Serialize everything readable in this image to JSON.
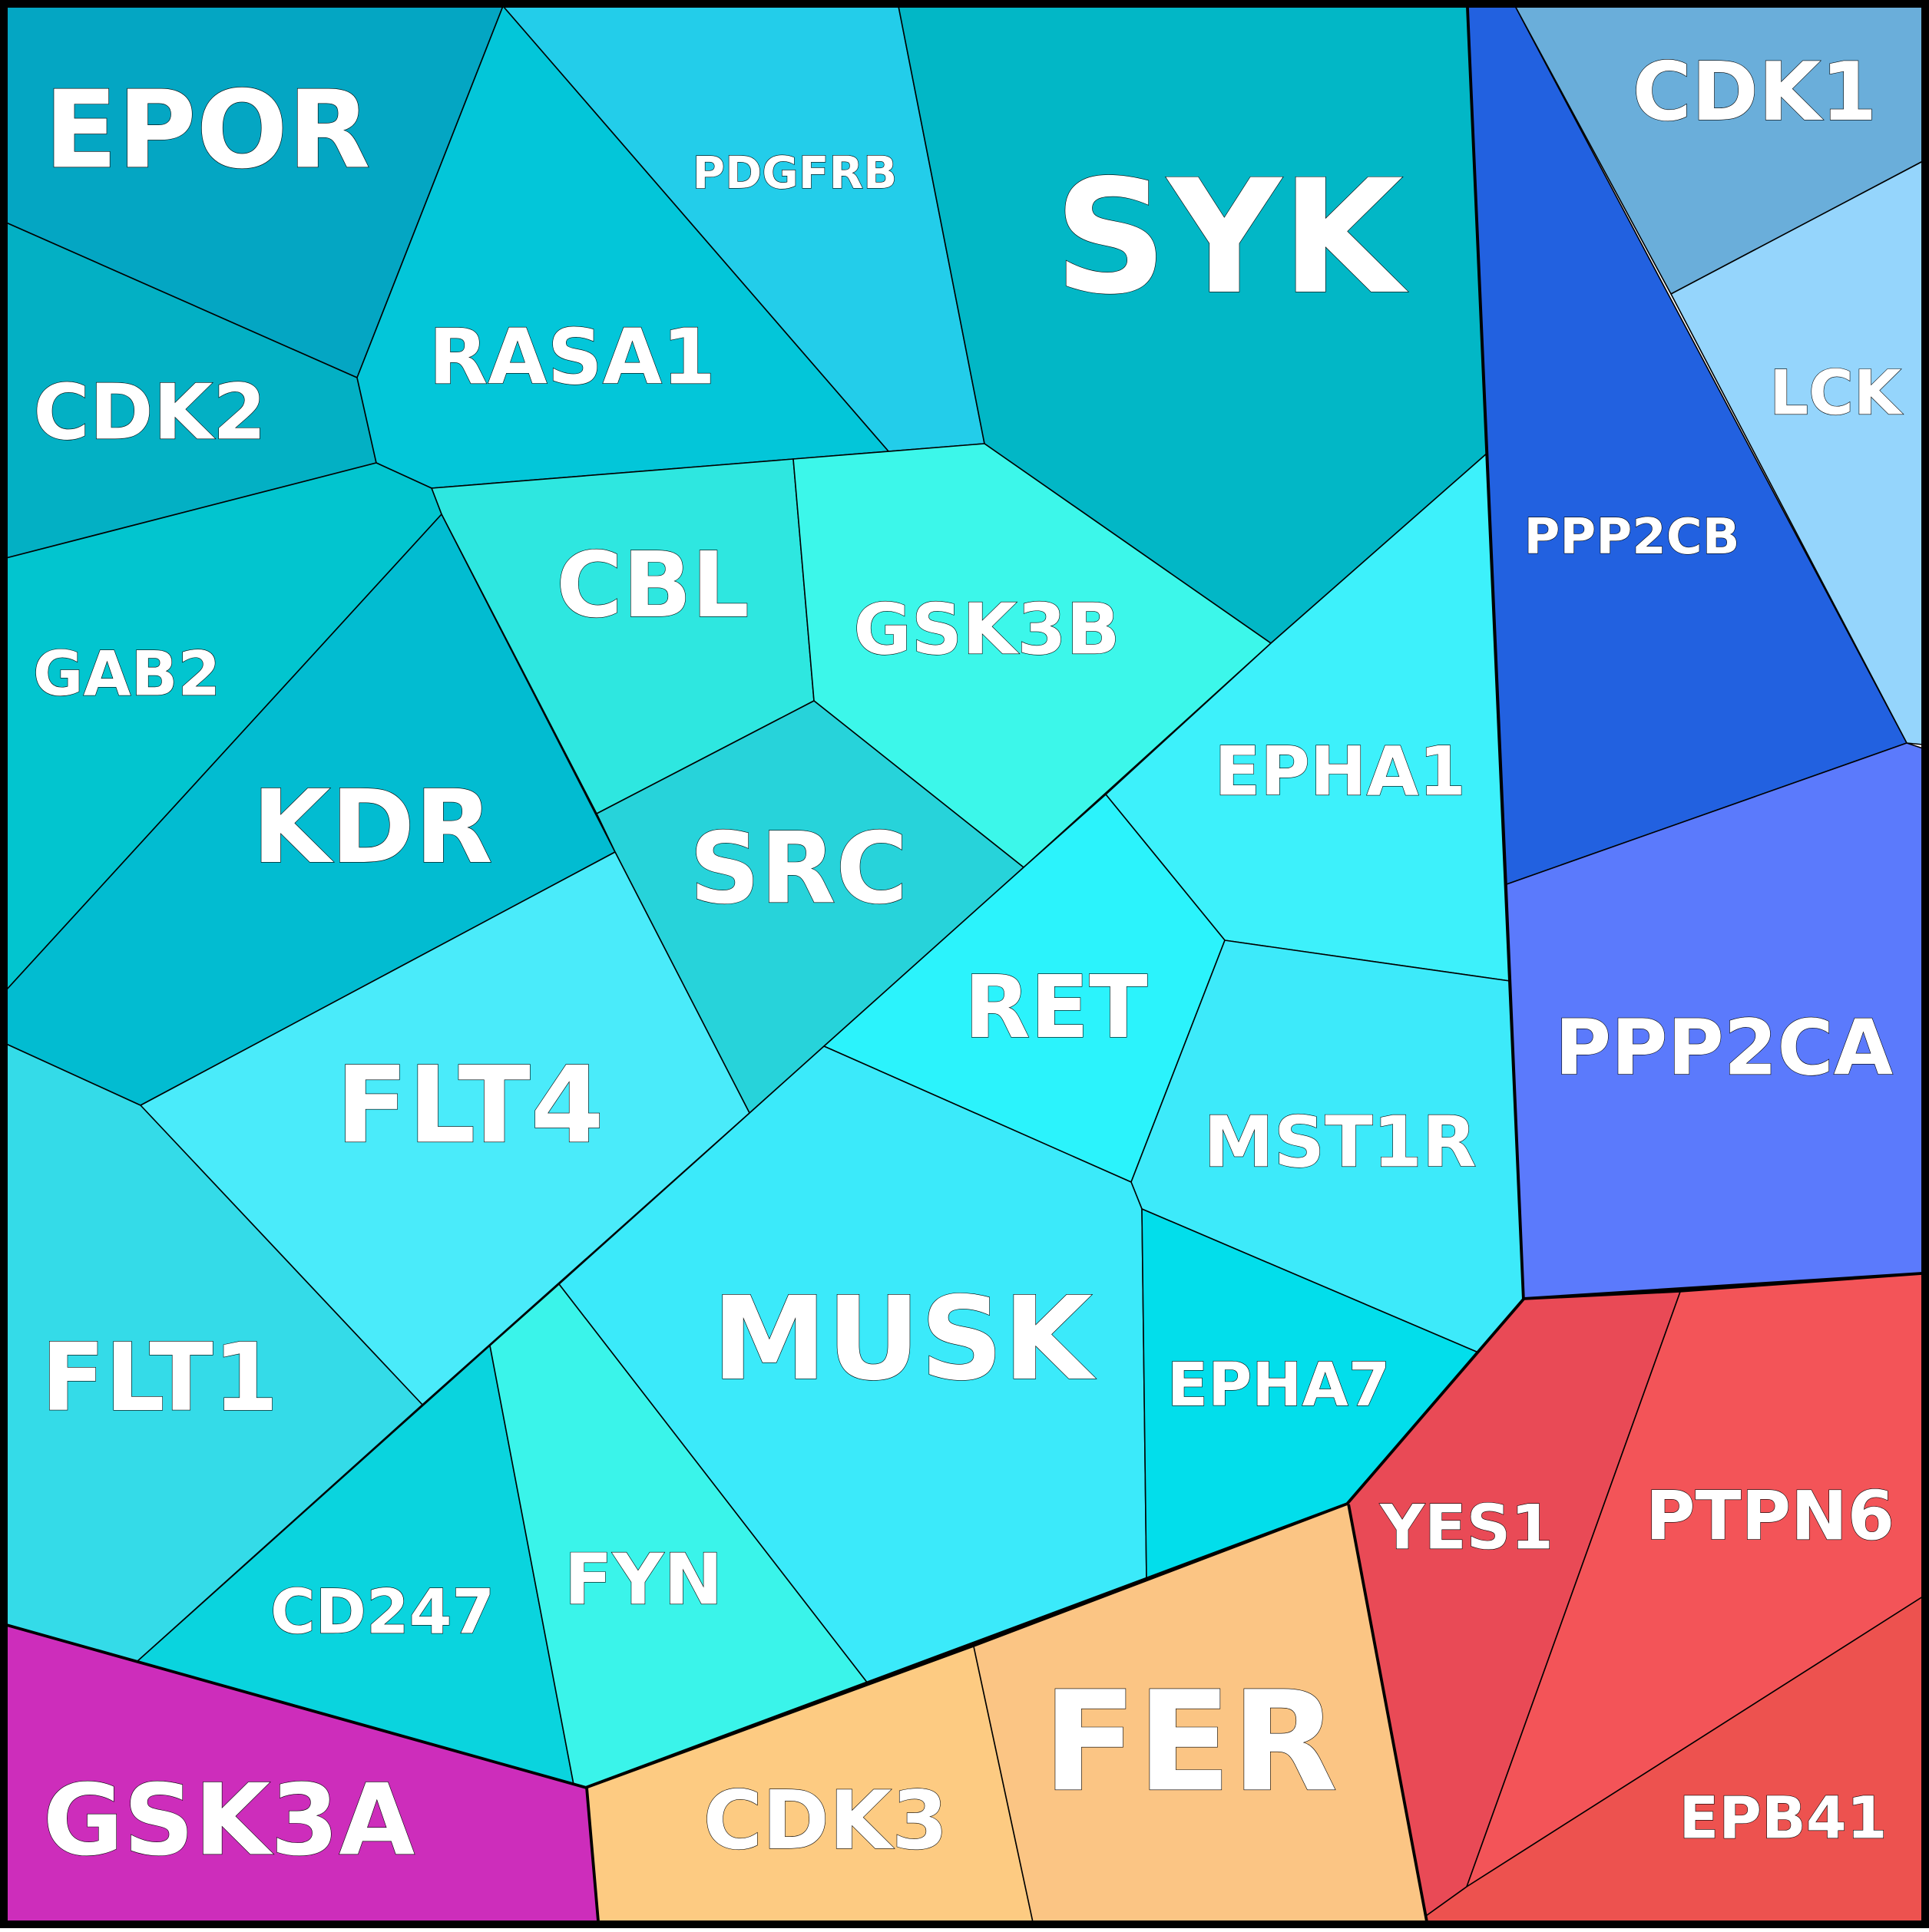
{
  "groups": [
    {
      "id": "cyan",
      "cells": [
        {
          "label": "EPOR",
          "color": "#04A6C3"
        },
        {
          "label": "PDGFRB",
          "color": "#23CDEA"
        },
        {
          "label": "SYK",
          "color": "#02B7C6"
        },
        {
          "label": "CDK2",
          "color": "#03B0C4"
        },
        {
          "label": "RASA1",
          "color": "#03C6D9"
        },
        {
          "label": "CBL",
          "color": "#2EE7E0"
        },
        {
          "label": "GSK3B",
          "color": "#3CF7EA"
        },
        {
          "label": "GAB2",
          "color": "#02C5CF"
        },
        {
          "label": "KDR",
          "color": "#02BCD1"
        },
        {
          "label": "SRC",
          "color": "#27D3DA"
        },
        {
          "label": "EPHA1",
          "color": "#3DF1FB"
        },
        {
          "label": "RET",
          "color": "#2BF3FC"
        },
        {
          "label": "FLT4",
          "color": "#4AEBFA"
        },
        {
          "label": "MST1R",
          "color": "#3DEAFA"
        },
        {
          "label": "FLT1",
          "color": "#34DBE8"
        },
        {
          "label": "MUSK",
          "color": "#3BEAFA"
        },
        {
          "label": "EPHA7",
          "color": "#02DEEB"
        },
        {
          "label": "CD247",
          "color": "#0AD4DE"
        },
        {
          "label": "FYN",
          "color": "#3AF4EA"
        }
      ]
    },
    {
      "id": "blue",
      "cells": [
        {
          "label": "CDK1",
          "color": "#6AAEDA"
        },
        {
          "label": "LCK",
          "color": "#95D5FC"
        },
        {
          "label": "PPP2CB",
          "color": "#2261E0"
        },
        {
          "label": "PPP2CA",
          "color": "#5B7AFC"
        }
      ]
    },
    {
      "id": "red",
      "cells": [
        {
          "label": "YES1",
          "color": "#E94A56"
        },
        {
          "label": "PTPN6",
          "color": "#F35458"
        },
        {
          "label": "EPB41",
          "color": "#ED524F"
        }
      ]
    },
    {
      "id": "orange",
      "cells": [
        {
          "label": "CDK3",
          "color": "#FDCB82"
        },
        {
          "label": "FER",
          "color": "#FBC584"
        }
      ]
    },
    {
      "id": "magenta",
      "cells": [
        {
          "label": "GSK3A",
          "color": "#CD2DBB"
        }
      ]
    }
  ]
}
